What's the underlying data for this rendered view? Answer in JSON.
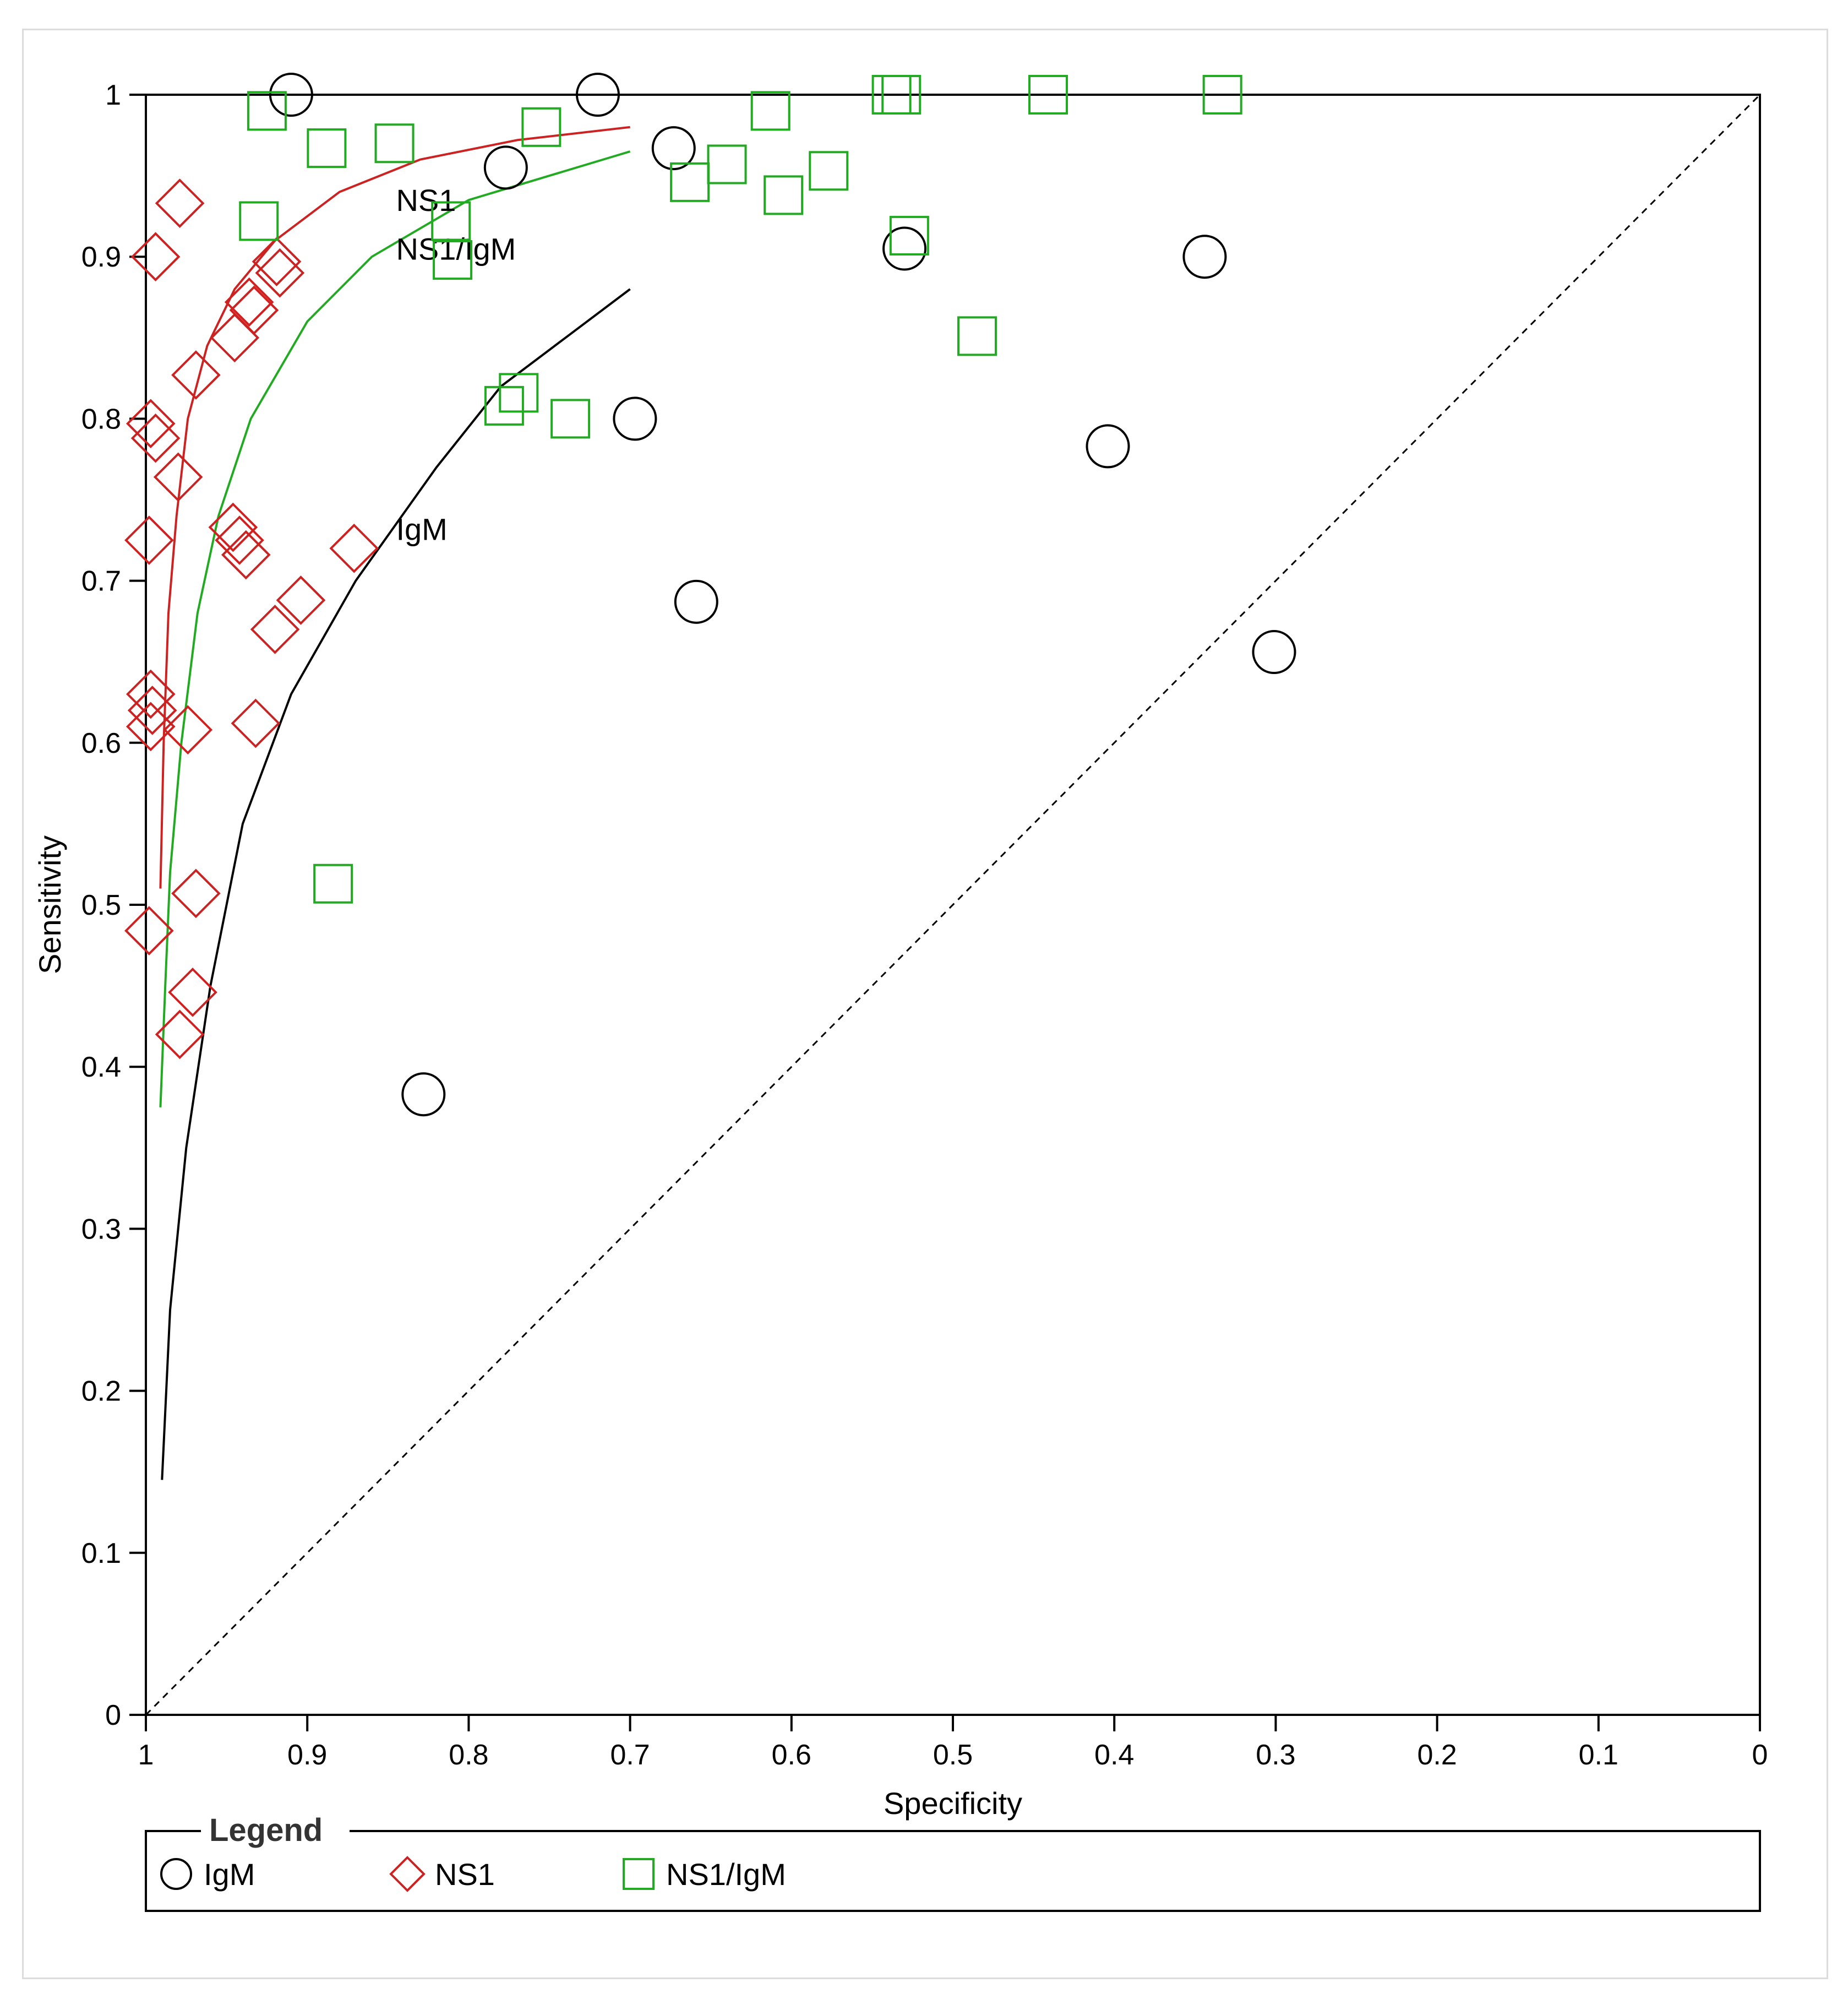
{
  "chart_data": {
    "type": "scatter",
    "xlabel": "Specificity",
    "ylabel": "Sensitivity",
    "xlim": [
      1,
      0
    ],
    "ylim": [
      0,
      1
    ],
    "x_ticks": [
      "1",
      "0.9",
      "0.8",
      "0.7",
      "0.6",
      "0.5",
      "0.4",
      "0.3",
      "0.2",
      "0.1",
      "0"
    ],
    "y_ticks": [
      "0",
      "0.1",
      "0.2",
      "0.3",
      "0.4",
      "0.5",
      "0.6",
      "0.7",
      "0.8",
      "0.9",
      "1"
    ],
    "reference_line": "diagonal (dashed)",
    "legend": {
      "title": "Legend",
      "placement": "bottom",
      "entries": [
        "IgM",
        "NS1",
        "NS1/IgM"
      ]
    },
    "series": [
      {
        "name": "IgM",
        "marker": "circle",
        "color": "#000000",
        "points": [
          [
            0.91,
            1.0
          ],
          [
            0.72,
            1.0
          ],
          [
            0.673,
            0.967
          ],
          [
            0.777,
            0.955
          ],
          [
            0.53,
            0.905
          ],
          [
            0.344,
            0.9
          ],
          [
            0.697,
            0.8
          ],
          [
            0.404,
            0.783
          ],
          [
            0.659,
            0.687
          ],
          [
            0.301,
            0.656
          ],
          [
            0.828,
            0.383
          ]
        ]
      },
      {
        "name": "NS1",
        "marker": "diamond",
        "color": "#cc2222",
        "points": [
          [
            0.979,
            0.933
          ],
          [
            0.994,
            0.9
          ],
          [
            0.919,
            0.897
          ],
          [
            0.917,
            0.89
          ],
          [
            0.936,
            0.872
          ],
          [
            0.933,
            0.867
          ],
          [
            0.945,
            0.85
          ],
          [
            0.969,
            0.827
          ],
          [
            0.997,
            0.797
          ],
          [
            0.994,
            0.788
          ],
          [
            0.98,
            0.764
          ],
          [
            0.946,
            0.733
          ],
          [
            0.942,
            0.725
          ],
          [
            0.938,
            0.716
          ],
          [
            0.871,
            0.72
          ],
          [
            0.998,
            0.725
          ],
          [
            0.904,
            0.688
          ],
          [
            0.92,
            0.67
          ],
          [
            0.997,
            0.63
          ],
          [
            0.996,
            0.62
          ],
          [
            0.997,
            0.61
          ],
          [
            0.974,
            0.608
          ],
          [
            0.932,
            0.612
          ],
          [
            0.969,
            0.507
          ],
          [
            0.998,
            0.484
          ],
          [
            0.971,
            0.446
          ],
          [
            0.979,
            0.42
          ]
        ]
      },
      {
        "name": "NS1/IgM",
        "marker": "square",
        "color": "#22aa22",
        "points": [
          [
            0.925,
            0.99
          ],
          [
            0.538,
            1.0
          ],
          [
            0.532,
            1.0
          ],
          [
            0.441,
            1.0
          ],
          [
            0.333,
            1.0
          ],
          [
            0.613,
            0.99
          ],
          [
            0.755,
            0.98
          ],
          [
            0.846,
            0.97
          ],
          [
            0.888,
            0.967
          ],
          [
            0.64,
            0.957
          ],
          [
            0.577,
            0.953
          ],
          [
            0.663,
            0.946
          ],
          [
            0.605,
            0.938
          ],
          [
            0.93,
            0.922
          ],
          [
            0.811,
            0.922
          ],
          [
            0.527,
            0.913
          ],
          [
            0.81,
            0.898
          ],
          [
            0.485,
            0.851
          ],
          [
            0.769,
            0.816
          ],
          [
            0.778,
            0.808
          ],
          [
            0.737,
            0.8
          ],
          [
            0.884,
            0.513
          ]
        ]
      }
    ],
    "sroc_curves": [
      {
        "name": "NS1",
        "color": "#cc2222",
        "points": [
          [
            0.991,
            0.51
          ],
          [
            0.989,
            0.6
          ],
          [
            0.986,
            0.68
          ],
          [
            0.981,
            0.74
          ],
          [
            0.974,
            0.8
          ],
          [
            0.962,
            0.845
          ],
          [
            0.945,
            0.88
          ],
          [
            0.92,
            0.91
          ],
          [
            0.88,
            0.94
          ],
          [
            0.83,
            0.96
          ],
          [
            0.77,
            0.972
          ],
          [
            0.7,
            0.98
          ]
        ]
      },
      {
        "name": "NS1/IgM",
        "color": "#22aa22",
        "points": [
          [
            0.991,
            0.375
          ],
          [
            0.988,
            0.45
          ],
          [
            0.985,
            0.52
          ],
          [
            0.978,
            0.6
          ],
          [
            0.968,
            0.68
          ],
          [
            0.955,
            0.74
          ],
          [
            0.935,
            0.8
          ],
          [
            0.9,
            0.86
          ],
          [
            0.86,
            0.9
          ],
          [
            0.8,
            0.935
          ],
          [
            0.75,
            0.95
          ],
          [
            0.7,
            0.965
          ]
        ]
      },
      {
        "name": "IgM",
        "color": "#000000",
        "points": [
          [
            0.99,
            0.145
          ],
          [
            0.985,
            0.25
          ],
          [
            0.975,
            0.35
          ],
          [
            0.96,
            0.45
          ],
          [
            0.94,
            0.55
          ],
          [
            0.91,
            0.63
          ],
          [
            0.87,
            0.7
          ],
          [
            0.82,
            0.77
          ],
          [
            0.78,
            0.82
          ],
          [
            0.74,
            0.85
          ],
          [
            0.7,
            0.88
          ]
        ]
      }
    ]
  }
}
